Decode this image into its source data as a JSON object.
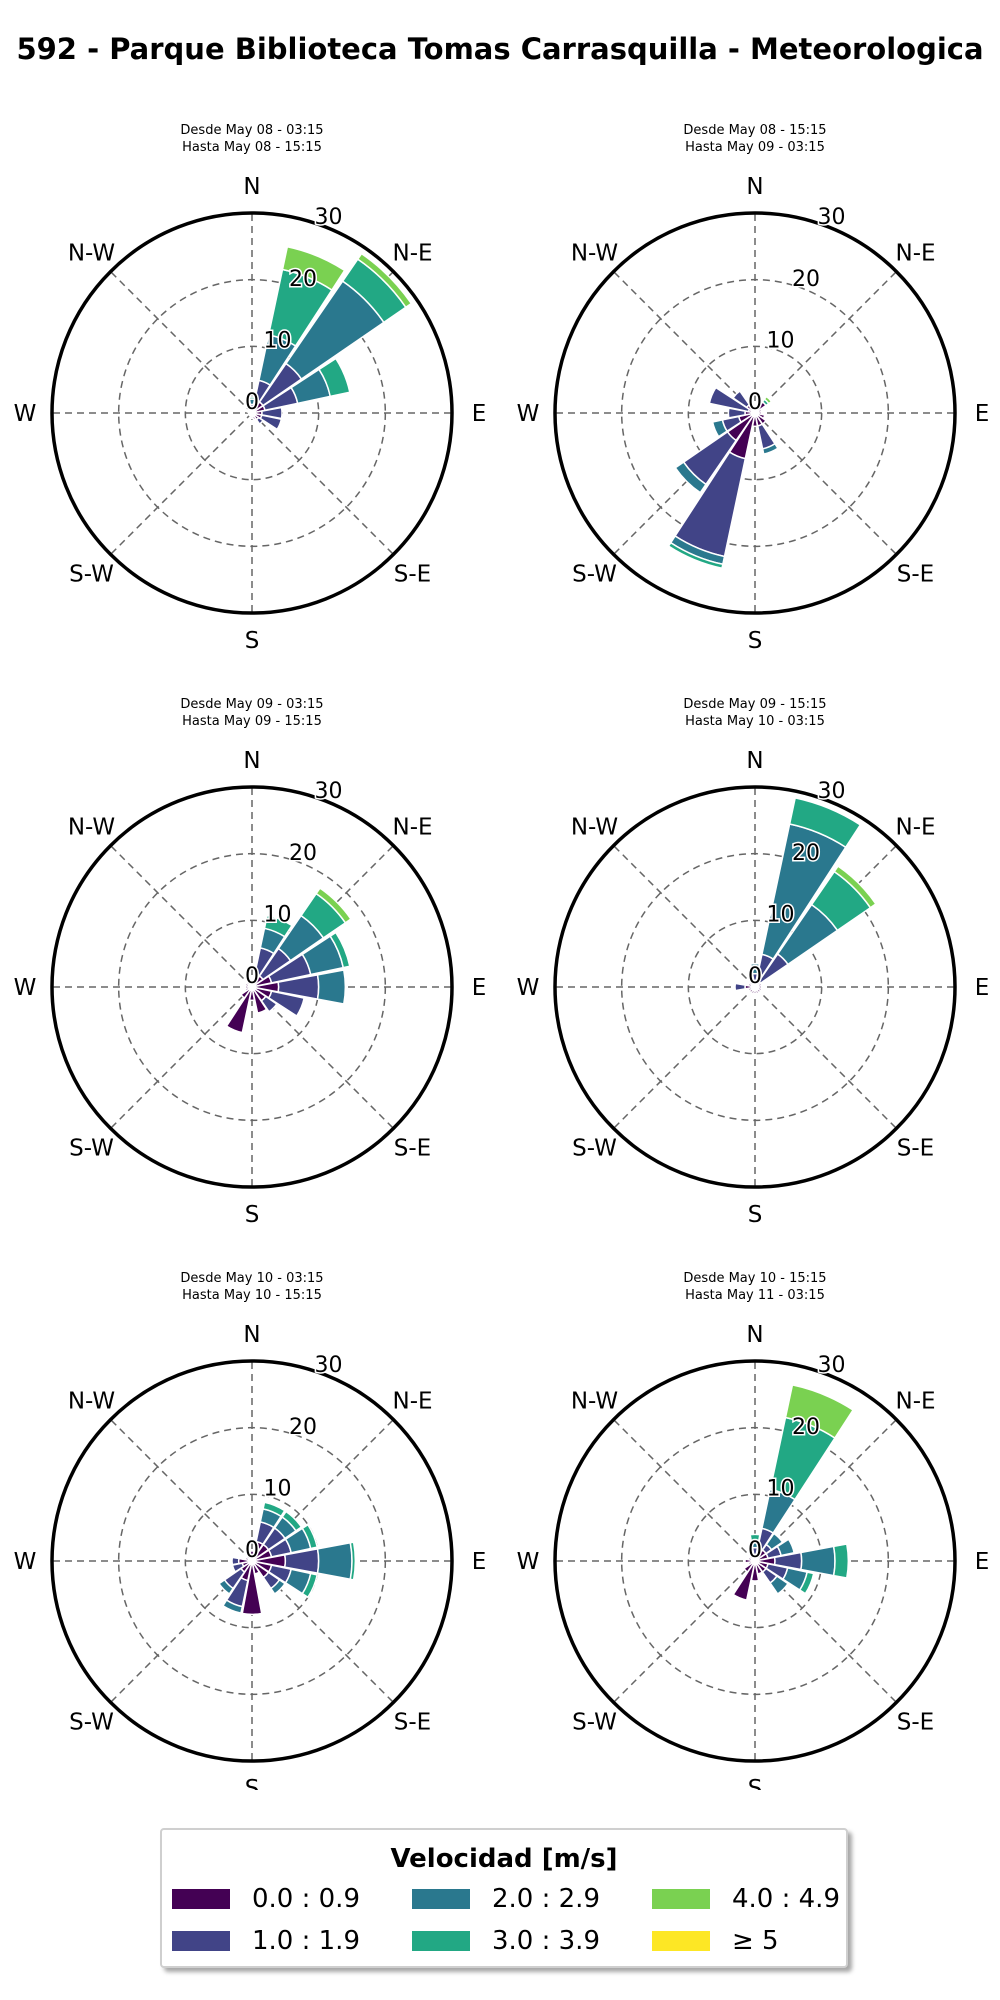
{
  "title": "592 - Parque Biblioteca Tomas Carrasquilla - Meteorologica",
  "legend": {
    "title": "Velocidad [m/s]",
    "items": [
      {
        "label": "0.0 : 0.9",
        "color": "#440154"
      },
      {
        "label": "1.0 : 1.9",
        "color": "#414487"
      },
      {
        "label": "2.0 : 2.9",
        "color": "#2a788e"
      },
      {
        "label": "3.0 : 3.9",
        "color": "#22a884"
      },
      {
        "label": "4.0 : 4.9",
        "color": "#7ad151"
      },
      {
        "label": "≥  5",
        "color": "#fde725"
      }
    ]
  },
  "chart_data": [
    {
      "type": "windrose",
      "subtitle": [
        "Desde May 08 - 03:15",
        "Hasta May 08 - 15:15"
      ],
      "directions": [
        "N",
        "N-E",
        "E",
        "S-E",
        "S",
        "S-W",
        "W",
        "N-W"
      ],
      "radial_ticks": [
        0,
        10,
        20,
        30
      ],
      "rmax": 30,
      "sectors": [
        {
          "dir": 0,
          "stack": [
            0.5,
            0.8,
            0.8,
            0.3
          ]
        },
        {
          "dir": 22.5,
          "stack": [
            1.5,
            3.5,
            7,
            10,
            3.5
          ]
        },
        {
          "dir": 45,
          "stack": [
            2,
            7,
            15,
            4,
            1
          ]
        },
        {
          "dir": 67.5,
          "stack": [
            2,
            5,
            5,
            3
          ]
        },
        {
          "dir": 90,
          "stack": [
            1.5,
            3
          ]
        },
        {
          "dir": 112.5,
          "stack": [
            1.5,
            3
          ]
        },
        {
          "dir": 135,
          "stack": [
            1.2,
            0.8
          ]
        },
        {
          "dir": 157.5,
          "stack": [
            1
          ]
        },
        {
          "dir": 180,
          "stack": [
            0.8
          ]
        },
        {
          "dir": 202.5,
          "stack": [
            0.5
          ]
        },
        {
          "dir": 225,
          "stack": [
            0.5
          ]
        },
        {
          "dir": 247.5,
          "stack": [
            0.5
          ]
        },
        {
          "dir": 270,
          "stack": [
            0.5
          ]
        },
        {
          "dir": 292.5,
          "stack": [
            0.7
          ]
        },
        {
          "dir": 315,
          "stack": [
            0.8
          ]
        },
        {
          "dir": 337.5,
          "stack": [
            1.2,
            0.6
          ]
        }
      ]
    },
    {
      "type": "windrose",
      "subtitle": [
        "Desde May 08 - 15:15",
        "Hasta May 09 - 03:15"
      ],
      "directions": [
        "N",
        "N-E",
        "E",
        "S-E",
        "S",
        "S-W",
        "W",
        "N-W"
      ],
      "radial_ticks": [
        0,
        10,
        20,
        30
      ],
      "rmax": 30,
      "sectors": [
        {
          "dir": 0,
          "stack": [
            1
          ]
        },
        {
          "dir": 22.5,
          "stack": [
            1
          ]
        },
        {
          "dir": 45,
          "stack": [
            2,
            0,
            0,
            0.5,
            0.5
          ]
        },
        {
          "dir": 67.5,
          "stack": [
            1
          ]
        },
        {
          "dir": 90,
          "stack": [
            1
          ]
        },
        {
          "dir": 112.5,
          "stack": [
            1.5
          ]
        },
        {
          "dir": 135,
          "stack": [
            2
          ]
        },
        {
          "dir": 157.5,
          "stack": [
            2,
            3.5,
            0.8
          ]
        },
        {
          "dir": 180,
          "stack": [
            2
          ]
        },
        {
          "dir": 202.5,
          "stack": [
            7,
            15,
            1.2,
            0.6
          ]
        },
        {
          "dir": 225,
          "stack": [
            5,
            8,
            1.5
          ]
        },
        {
          "dir": 247.5,
          "stack": [
            2.5,
            2.5,
            1.5
          ]
        },
        {
          "dir": 270,
          "stack": [
            1.5,
            2.5
          ]
        },
        {
          "dir": 292.5,
          "stack": [
            1,
            6
          ]
        },
        {
          "dir": 315,
          "stack": [
            1.5,
            2.5
          ]
        },
        {
          "dir": 337.5,
          "stack": [
            1,
            1
          ]
        }
      ]
    },
    {
      "type": "windrose",
      "subtitle": [
        "Desde May 09 - 03:15",
        "Hasta May 09 - 15:15"
      ],
      "directions": [
        "N",
        "N-E",
        "E",
        "S-E",
        "S",
        "S-W",
        "W",
        "N-W"
      ],
      "radial_ticks": [
        0,
        10,
        20,
        30
      ],
      "rmax": 30,
      "sectors": [
        {
          "dir": 0,
          "stack": [
            1
          ]
        },
        {
          "dir": 22.5,
          "stack": [
            2,
            4,
            3,
            2
          ]
        },
        {
          "dir": 45,
          "stack": [
            2,
            5,
            6,
            4,
            1
          ]
        },
        {
          "dir": 67.5,
          "stack": [
            3,
            6,
            5,
            1
          ]
        },
        {
          "dir": 90,
          "stack": [
            4,
            6,
            4
          ]
        },
        {
          "dir": 112.5,
          "stack": [
            3,
            5
          ]
        },
        {
          "dir": 135,
          "stack": [
            2.5,
            2
          ]
        },
        {
          "dir": 157.5,
          "stack": [
            4
          ]
        },
        {
          "dir": 180,
          "stack": [
            2
          ]
        },
        {
          "dir": 202.5,
          "stack": [
            7
          ]
        },
        {
          "dir": 225,
          "stack": [
            2
          ]
        },
        {
          "dir": 247.5,
          "stack": [
            1
          ]
        },
        {
          "dir": 270,
          "stack": [
            1
          ]
        },
        {
          "dir": 292.5,
          "stack": [
            1
          ]
        },
        {
          "dir": 315,
          "stack": [
            1
          ]
        },
        {
          "dir": 337.5,
          "stack": [
            1
          ]
        }
      ]
    },
    {
      "type": "windrose",
      "subtitle": [
        "Desde May 09 - 15:15",
        "Hasta May 10 - 03:15"
      ],
      "directions": [
        "N",
        "N-E",
        "E",
        "S-E",
        "S",
        "S-W",
        "W",
        "N-W"
      ],
      "radial_ticks": [
        0,
        10,
        20,
        30
      ],
      "rmax": 30,
      "sectors": [
        {
          "dir": 0,
          "stack": [
            1,
            1,
            1.5
          ]
        },
        {
          "dir": 22.5,
          "stack": [
            2,
            3,
            20,
            4
          ]
        },
        {
          "dir": 45,
          "stack": [
            1,
            5,
            9,
            6,
            1
          ]
        },
        {
          "dir": 67.5,
          "stack": [
            1
          ]
        },
        {
          "dir": 90,
          "stack": [
            1
          ]
        },
        {
          "dir": 112.5,
          "stack": [
            1
          ]
        },
        {
          "dir": 135,
          "stack": [
            1
          ]
        },
        {
          "dir": 157.5,
          "stack": [
            1
          ]
        },
        {
          "dir": 180,
          "stack": [
            1
          ]
        },
        {
          "dir": 202.5,
          "stack": [
            1
          ]
        },
        {
          "dir": 225,
          "stack": [
            1
          ]
        },
        {
          "dir": 247.5,
          "stack": [
            1
          ]
        },
        {
          "dir": 270,
          "stack": [
            1.5,
            1.5
          ]
        },
        {
          "dir": 292.5,
          "stack": [
            1
          ]
        },
        {
          "dir": 315,
          "stack": [
            1
          ]
        },
        {
          "dir": 337.5,
          "stack": [
            1
          ]
        }
      ]
    },
    {
      "type": "windrose",
      "subtitle": [
        "Desde May 10 - 03:15",
        "Hasta May 10 - 15:15"
      ],
      "directions": [
        "N",
        "N-E",
        "E",
        "S-E",
        "S",
        "S-W",
        "W",
        "N-W"
      ],
      "radial_ticks": [
        0,
        10,
        20,
        30
      ],
      "rmax": 30,
      "sectors": [
        {
          "dir": 0,
          "stack": [
            1.5
          ]
        },
        {
          "dir": 22.5,
          "stack": [
            3,
            3,
            2,
            1
          ]
        },
        {
          "dir": 45,
          "stack": [
            3,
            3,
            2,
            1
          ]
        },
        {
          "dir": 67.5,
          "stack": [
            3,
            3,
            3,
            1
          ]
        },
        {
          "dir": 90,
          "stack": [
            5,
            5,
            5,
            0.5
          ]
        },
        {
          "dir": 112.5,
          "stack": [
            3,
            3,
            3,
            1
          ]
        },
        {
          "dir": 135,
          "stack": [
            3,
            2,
            1
          ]
        },
        {
          "dir": 157.5,
          "stack": [
            2
          ]
        },
        {
          "dir": 180,
          "stack": [
            8
          ]
        },
        {
          "dir": 202.5,
          "stack": [
            3,
            4,
            1
          ]
        },
        {
          "dir": 225,
          "stack": [
            2,
            3,
            1
          ]
        },
        {
          "dir": 247.5,
          "stack": [
            1.5,
            1.5
          ]
        },
        {
          "dir": 270,
          "stack": [
            2,
            1
          ]
        },
        {
          "dir": 292.5,
          "stack": [
            1
          ]
        },
        {
          "dir": 315,
          "stack": [
            1
          ]
        },
        {
          "dir": 337.5,
          "stack": [
            1
          ]
        }
      ]
    },
    {
      "type": "windrose",
      "subtitle": [
        "Desde May 10 - 15:15",
        "Hasta May 11 - 03:15"
      ],
      "directions": [
        "N",
        "N-E",
        "E",
        "S-E",
        "S",
        "S-W",
        "W",
        "N-W"
      ],
      "radial_ticks": [
        0,
        10,
        20,
        30
      ],
      "rmax": 30,
      "sectors": [
        {
          "dir": 0,
          "stack": [
            1,
            1,
            1,
            1
          ]
        },
        {
          "dir": 22.5,
          "stack": [
            2,
            3,
            6,
            11,
            5
          ]
        },
        {
          "dir": 45,
          "stack": [
            2,
            1,
            2
          ]
        },
        {
          "dir": 67.5,
          "stack": [
            2,
            2,
            2
          ]
        },
        {
          "dir": 90,
          "stack": [
            3,
            4,
            5,
            2
          ]
        },
        {
          "dir": 112.5,
          "stack": [
            2,
            3,
            3,
            1
          ]
        },
        {
          "dir": 135,
          "stack": [
            2,
            2,
            2
          ]
        },
        {
          "dir": 157.5,
          "stack": [
            2
          ]
        },
        {
          "dir": 180,
          "stack": [
            3
          ]
        },
        {
          "dir": 202.5,
          "stack": [
            6
          ]
        },
        {
          "dir": 225,
          "stack": [
            2
          ]
        },
        {
          "dir": 247.5,
          "stack": [
            1
          ]
        },
        {
          "dir": 270,
          "stack": [
            1.5
          ]
        },
        {
          "dir": 292.5,
          "stack": [
            1
          ]
        },
        {
          "dir": 315,
          "stack": [
            1
          ]
        },
        {
          "dir": 337.5,
          "stack": [
            1,
            0,
            0,
            0,
            0.5
          ]
        }
      ]
    }
  ]
}
